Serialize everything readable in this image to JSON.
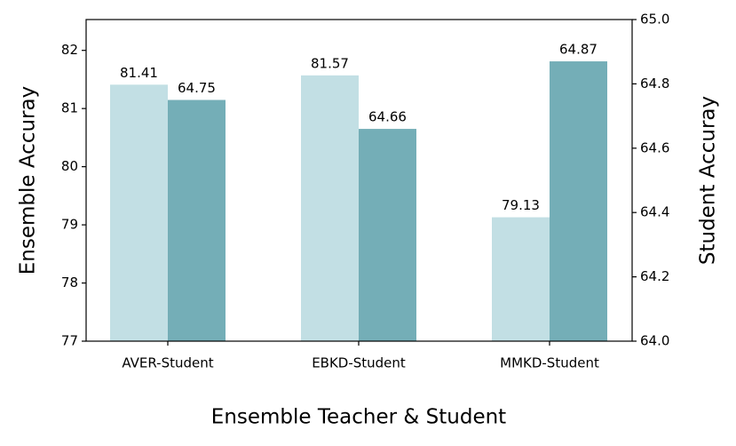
{
  "chart_data": {
    "type": "bar",
    "xlabel": "Ensemble Teacher & Student",
    "ylabel": "Ensemble Accuray",
    "y2label": "Student Accuray",
    "categories": [
      "AVER-Student",
      "EBKD-Student",
      "MMKD-Student"
    ],
    "series": [
      {
        "color": "#c2dfe4",
        "values": [
          81.41,
          81.57,
          79.13
        ]
      },
      {
        "color": "#74aeb7",
        "axis": "y2",
        "values": [
          64.75,
          64.66,
          64.87
        ]
      }
    ],
    "ylim": [
      77,
      82.53
    ],
    "yticks": [
      77,
      78,
      79,
      80,
      81,
      82
    ],
    "y2lim": [
      64,
      65
    ],
    "y2ticks": [
      {
        "value": 64,
        "label": "64.0"
      },
      64.2,
      64.4,
      64.6,
      64.8,
      {
        "value": 65,
        "label": "65.0"
      }
    ]
  }
}
